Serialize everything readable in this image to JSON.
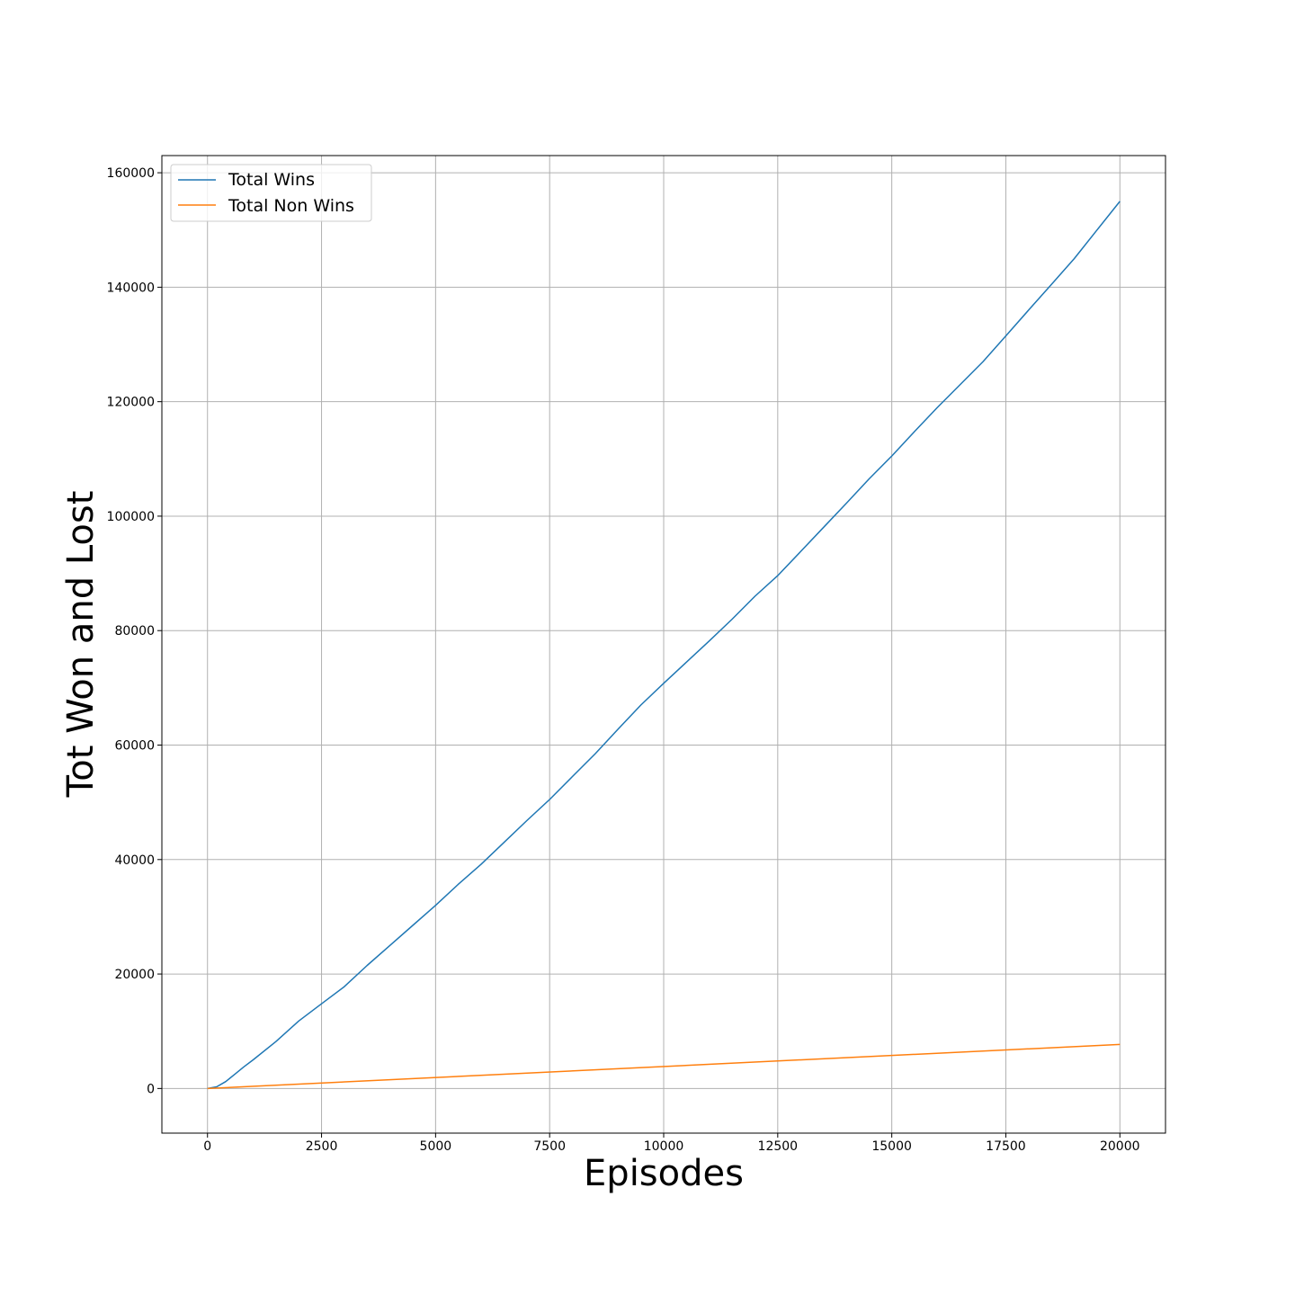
{
  "chart_data": {
    "type": "line",
    "title": "",
    "xlabel": "Episodes",
    "ylabel": "Tot Won and Lost",
    "xlim": [
      -1000,
      21000
    ],
    "ylim": [
      -7800,
      163000
    ],
    "x_ticks": [
      0,
      2500,
      5000,
      7500,
      10000,
      12500,
      15000,
      17500,
      20000
    ],
    "x_tick_labels": [
      "0",
      "2500",
      "5000",
      "7500",
      "10000",
      "12500",
      "15000",
      "17500",
      "20000"
    ],
    "y_ticks": [
      0,
      20000,
      40000,
      60000,
      80000,
      100000,
      120000,
      140000,
      160000
    ],
    "y_tick_labels": [
      "0",
      "20000",
      "40000",
      "60000",
      "80000",
      "100000",
      "120000",
      "140000",
      "160000"
    ],
    "grid": true,
    "legend_position": "top-left",
    "series": [
      {
        "name": "Total Wins",
        "color": "#1f77b4",
        "x": [
          0,
          200,
          400,
          600,
          800,
          1000,
          1500,
          2000,
          2500,
          3000,
          3500,
          4000,
          4500,
          5000,
          5500,
          6000,
          6500,
          7000,
          7500,
          8000,
          8500,
          9000,
          9500,
          10000,
          10500,
          11000,
          11500,
          12000,
          12500,
          13000,
          13500,
          14000,
          14500,
          15000,
          15500,
          16000,
          16500,
          17000,
          17500,
          18000,
          18500,
          19000,
          19500,
          20000
        ],
        "y": [
          0,
          300,
          1200,
          2500,
          3800,
          5000,
          8200,
          11800,
          14800,
          17800,
          21500,
          25000,
          28500,
          32000,
          35700,
          39200,
          43000,
          46800,
          50500,
          54500,
          58500,
          62800,
          67000,
          70800,
          74500,
          78200,
          82000,
          86000,
          89600,
          93800,
          98000,
          102200,
          106500,
          110500,
          114800,
          119000,
          123000,
          127000,
          131500,
          136000,
          140500,
          145000,
          150000,
          155000
        ]
      },
      {
        "name": "Total Non Wins",
        "color": "#ff7f0e",
        "x": [
          0,
          20000
        ],
        "y": [
          0,
          7700
        ]
      }
    ]
  }
}
